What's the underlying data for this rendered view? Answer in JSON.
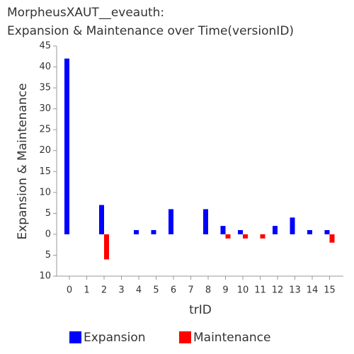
{
  "chart_data": {
    "type": "bar",
    "title": "MorpheusXAUT__eveauth:",
    "subtitle": "Expansion & Maintenance over Time(versionID)",
    "x_label": "trID",
    "y_label": "Expansion & Maintenance",
    "categories": [
      "0",
      "1",
      "2",
      "3",
      "4",
      "5",
      "6",
      "7",
      "8",
      "9",
      "10",
      "11",
      "12",
      "13",
      "14",
      "15"
    ],
    "series": [
      {
        "name": "Expansion",
        "color": "#0000ff",
        "values": [
          42,
          0,
          7,
          0,
          1,
          1,
          6,
          0,
          6,
          2,
          1,
          0,
          2,
          4,
          1,
          1
        ]
      },
      {
        "name": "Maintenance",
        "color": "#ff0000",
        "values": [
          0,
          0,
          -6,
          0,
          0,
          0,
          0,
          0,
          0,
          -1,
          -1,
          -1,
          0,
          0,
          0,
          -2
        ]
      }
    ],
    "ylim": [
      -10,
      45
    ],
    "yticks": [
      {
        "value": -10,
        "label": "10"
      },
      {
        "value": -5,
        "label": "5"
      },
      0,
      5,
      10,
      15,
      20,
      25,
      30,
      35,
      40,
      45
    ],
    "legend": "bottom"
  }
}
